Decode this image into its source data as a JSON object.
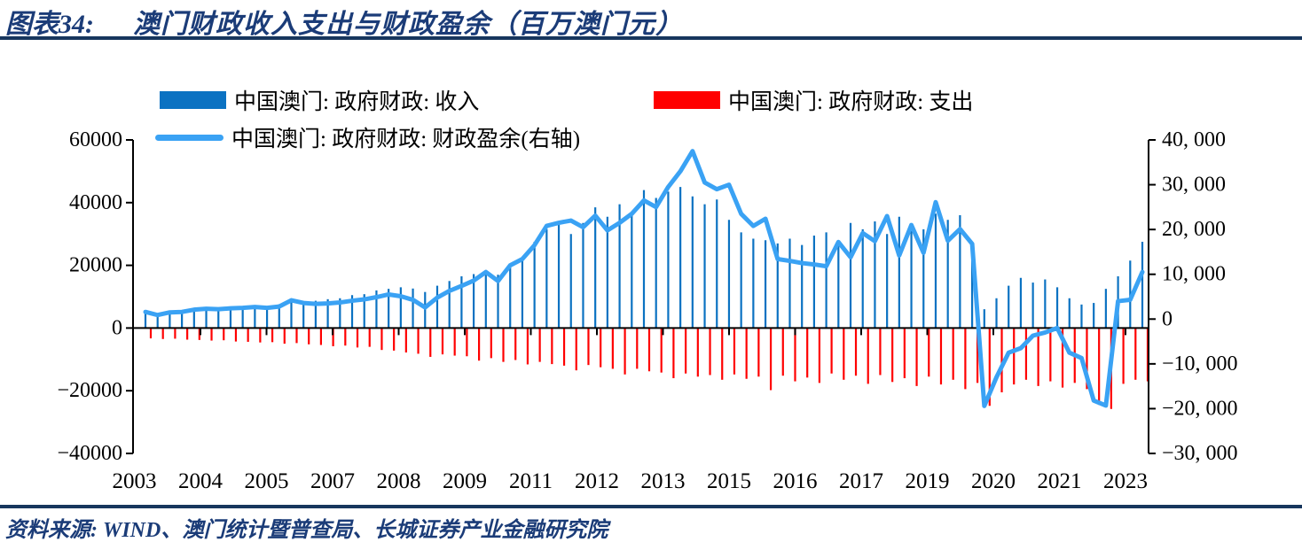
{
  "header": {
    "figure_label": "图表34:",
    "title": "澳门财政收入支出与财政盈余（百万澳门元）"
  },
  "source_line": "资料来源: WIND、澳门统计暨普查局、长城证券产业金融研究院",
  "colors": {
    "navy_accent": "#17365D",
    "title_text": "#1B3C78",
    "income_blue": "#0B72C2",
    "expense_red": "#FF0000",
    "surplus_light_blue": "#3AA2F4",
    "axis_black": "#000000"
  },
  "legend": {
    "income": "中国澳门: 政府财政: 收入",
    "expense": "中国澳门: 政府财政: 支出",
    "surplus": "中国澳门: 政府财政: 财政盈余(右轴)"
  },
  "chart_data": {
    "type": "bar",
    "subtype": "bar+line combo, dual axis",
    "frequency": "quarterly",
    "x_start": "2003Q1",
    "x_end": "2023Q3",
    "grid": false,
    "legend_position": "top",
    "x_tick_labels": [
      "2003",
      "2004",
      "2005",
      "2007",
      "2008",
      "2009",
      "2011",
      "2012",
      "2013",
      "2015",
      "2016",
      "2017",
      "2019",
      "2020",
      "2021",
      "2023"
    ],
    "left_axis": {
      "range": [
        -40000,
        60000
      ],
      "tick_values": [
        60000,
        40000,
        20000,
        0,
        -20000,
        -40000
      ],
      "tick_labels": [
        "60000",
        "40000",
        "20000",
        "0",
        "−20000",
        "−40000"
      ]
    },
    "right_axis": {
      "range": [
        -30000,
        40000
      ],
      "tick_values": [
        40000,
        30000,
        20000,
        10000,
        0,
        -10000,
        -20000,
        -30000
      ],
      "tick_labels": [
        "40, 000",
        "30, 000",
        "20, 000",
        "10, 000",
        "0",
        "−10, 000",
        "−20, 000",
        "−30, 000"
      ]
    },
    "series": [
      {
        "name": "中国澳门: 政府财政: 收入",
        "type": "bar",
        "axis": "left",
        "color": "#0B72C2",
        "values": [
          4800,
          4500,
          5000,
          5200,
          5800,
          6200,
          6000,
          6600,
          6800,
          7200,
          7000,
          7600,
          8800,
          8600,
          8700,
          9200,
          9500,
          10500,
          10800,
          12000,
          12500,
          13000,
          12600,
          11500,
          13500,
          15000,
          16500,
          17200,
          18500,
          17000,
          20500,
          22000,
          27500,
          31500,
          33000,
          30000,
          33500,
          38500,
          35500,
          39500,
          36500,
          44000,
          41500,
          43500,
          45000,
          42000,
          39500,
          41000,
          34500,
          30500,
          28500,
          28000,
          27000,
          28500,
          26500,
          29500,
          30500,
          28000,
          33500,
          31500,
          34000,
          30000,
          35500,
          33000,
          31500,
          36500,
          34500,
          36000,
          22500,
          6000,
          9500,
          13500,
          16000,
          14500,
          15500,
          13000,
          9500,
          7500,
          8000,
          12500,
          16500,
          21500,
          27500
        ]
      },
      {
        "name": "中国澳门: 政府财政: 支出",
        "type": "bar",
        "axis": "left",
        "color": "#FF0000",
        "values": [
          -3300,
          -3500,
          -3400,
          -3700,
          -3800,
          -4000,
          -3900,
          -4300,
          -4400,
          -4600,
          -4500,
          -5000,
          -4800,
          -5200,
          -5400,
          -5800,
          -5600,
          -6200,
          -6000,
          -7000,
          -7200,
          -7800,
          -8200,
          -9200,
          -8400,
          -8800,
          -9000,
          -10400,
          -9600,
          -10800,
          -10200,
          -11600,
          -10800,
          -11500,
          -12000,
          -13500,
          -11800,
          -12500,
          -13000,
          -14800,
          -13000,
          -13800,
          -14200,
          -16000,
          -14500,
          -15500,
          -15000,
          -16500,
          -14800,
          -16200,
          -15500,
          -19800,
          -15200,
          -17000,
          -15800,
          -17500,
          -14500,
          -16500,
          -15200,
          -17800,
          -15000,
          -17200,
          -16000,
          -18500,
          -15500,
          -18000,
          -16500,
          -19500,
          -17500,
          -24800,
          -20500,
          -18000,
          -16500,
          -18500,
          -17000,
          -19000,
          -17500,
          -19500,
          -24500,
          -25800,
          -17800,
          -16500,
          -17000
        ]
      },
      {
        "name": "中国澳门: 政府财政: 财政盈余(右轴)",
        "type": "line",
        "axis": "right",
        "color": "#3AA2F4",
        "values": [
          1600,
          900,
          1500,
          1600,
          2100,
          2300,
          2200,
          2400,
          2500,
          2700,
          2500,
          2800,
          4200,
          3600,
          3400,
          3500,
          3700,
          4100,
          4400,
          4900,
          5500,
          5100,
          4300,
          2600,
          4800,
          6300,
          7400,
          8600,
          10500,
          8500,
          12000,
          13400,
          16500,
          20800,
          21500,
          22000,
          20500,
          23100,
          19800,
          21500,
          23500,
          26500,
          25000,
          29500,
          33000,
          37500,
          30500,
          29000,
          30000,
          23500,
          20800,
          22400,
          13400,
          13000,
          12500,
          12200,
          11800,
          17200,
          13800,
          19200,
          17400,
          23000,
          14200,
          21000,
          14800,
          26100,
          17500,
          20100,
          16800,
          -19400,
          -13000,
          -7500,
          -6500,
          -3700,
          -3000,
          -2000,
          -7500,
          -8700,
          -18200,
          -19300,
          4000,
          4300,
          10500
        ]
      }
    ]
  }
}
